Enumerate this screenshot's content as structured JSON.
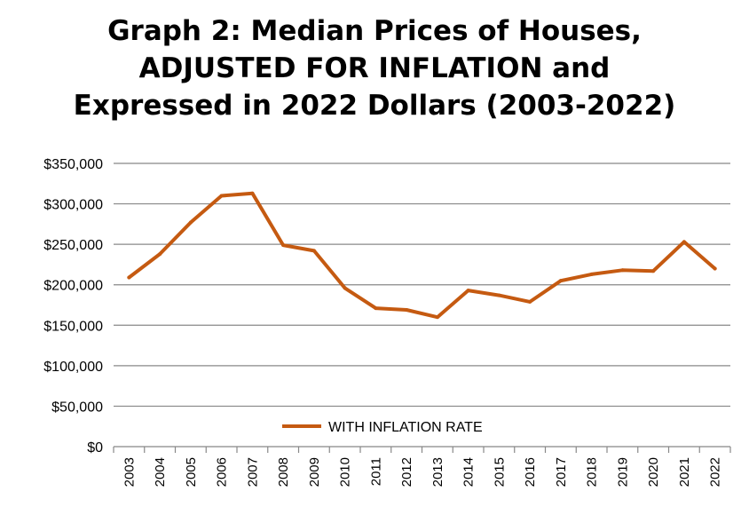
{
  "chart_data": {
    "type": "line",
    "title": "Graph 2: Median Prices of Houses, ADJUSTED FOR INFLATION and Expressed in 2022 Dollars (2003-2022)",
    "title_lines": [
      "Graph 2: Median Prices of Houses,",
      "ADJUSTED FOR INFLATION and",
      "Expressed in 2022 Dollars (2003-2022)"
    ],
    "xlabel": "",
    "ylabel": "",
    "x": [
      "2003",
      "2004",
      "2005",
      "2006",
      "2007",
      "2008",
      "2009",
      "2010",
      "2011",
      "2012",
      "2013",
      "2014",
      "2015",
      "2016",
      "2017",
      "2018",
      "2019",
      "2020",
      "2021",
      "2022"
    ],
    "series": [
      {
        "name": "WITH INFLATION RATE",
        "color": "#c55a11",
        "values": [
          209000,
          238000,
          277000,
          310000,
          313000,
          249000,
          242000,
          196000,
          171000,
          169000,
          160000,
          193000,
          187000,
          179000,
          205000,
          213000,
          218000,
          217000,
          253000,
          220000
        ]
      }
    ],
    "ylim": [
      0,
      350000
    ],
    "yticks": [
      0,
      50000,
      100000,
      150000,
      200000,
      250000,
      300000,
      350000
    ],
    "ytick_labels": [
      "$0",
      "$50,000",
      "$100,000",
      "$150,000",
      "$200,000",
      "$250,000",
      "$300,000",
      "$350,000"
    ],
    "grid": true,
    "legend_position": "bottom-center",
    "gridline_color": "#888888",
    "axis_color": "#888888"
  }
}
